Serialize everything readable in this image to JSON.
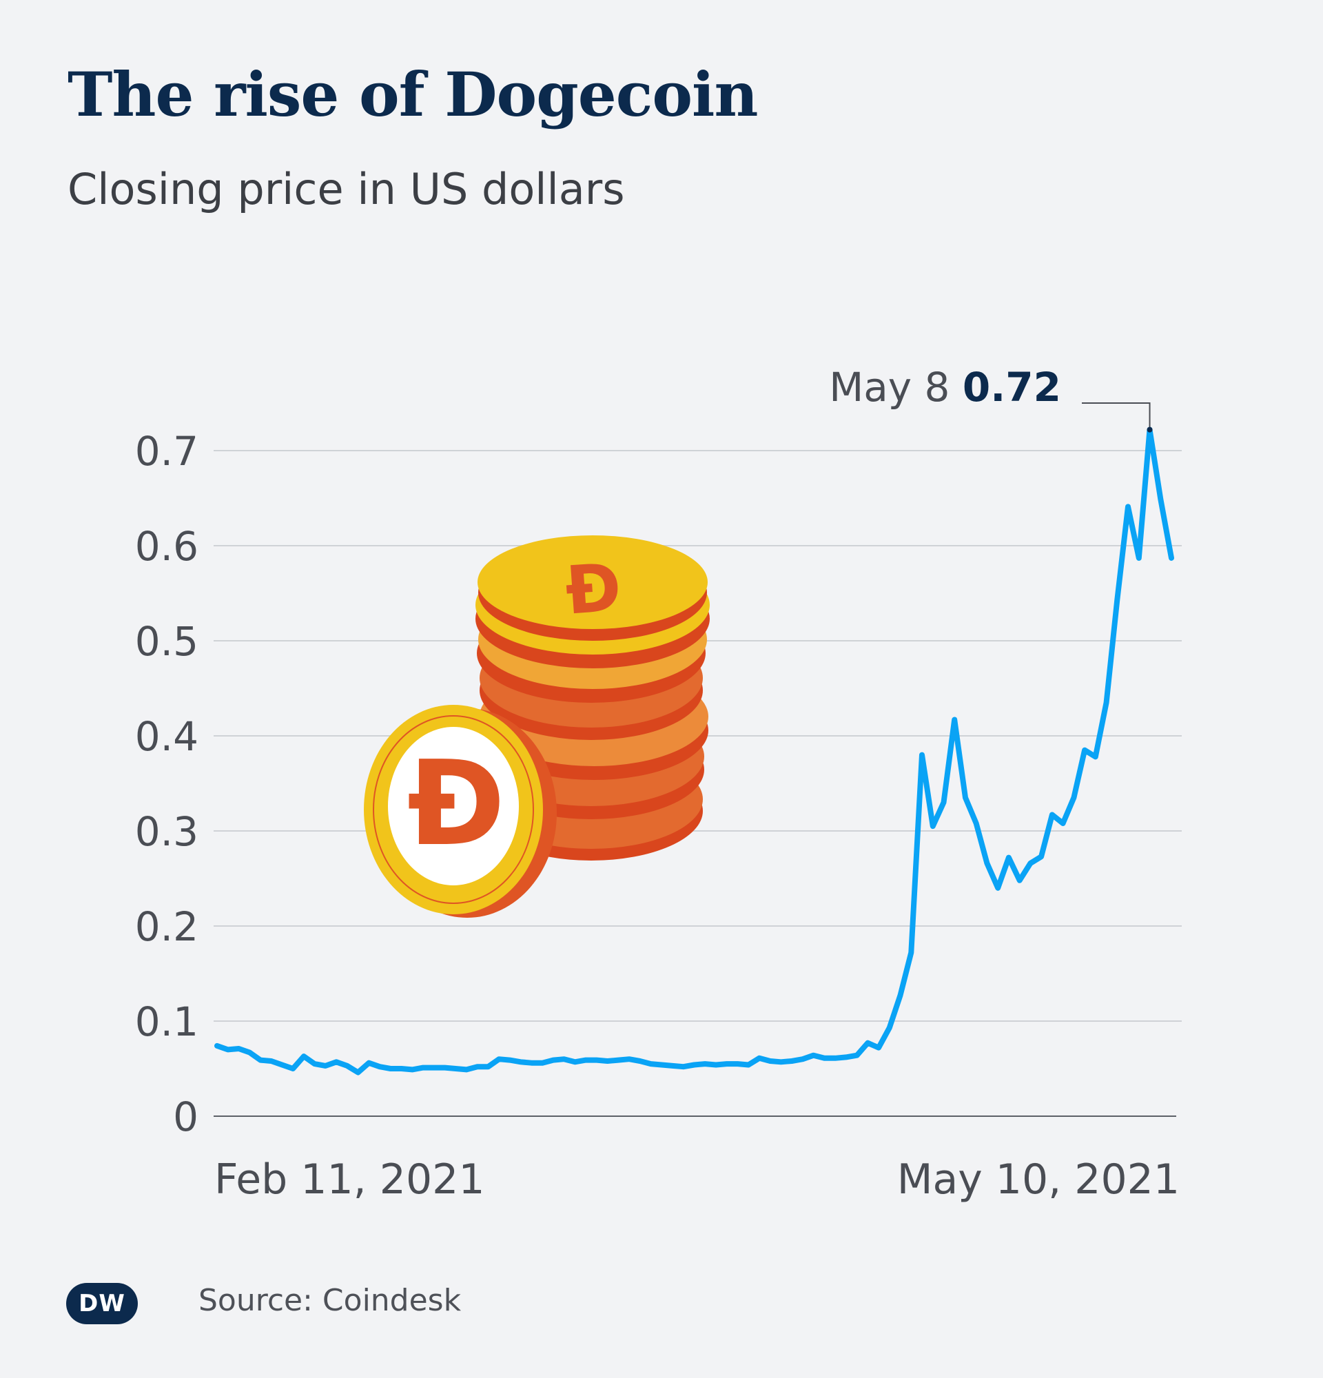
{
  "title": "The rise of Dogecoin",
  "subtitle": "Closing price in US dollars",
  "source": "Source: Coindesk",
  "logo_text": "DW",
  "colors": {
    "line": "#0aa3f5",
    "title": "#0c2a4d",
    "grid": "#cfd2d6",
    "coin_gold": "#f1c41b",
    "coin_orange": "#df5524"
  },
  "annotation": {
    "date": "May 8",
    "value": "0.72"
  },
  "chart_data": {
    "type": "line",
    "title": "The rise of Dogecoin",
    "ylabel": "",
    "xlabel": "",
    "ylim": [
      0,
      0.75
    ],
    "yticks": [
      "0",
      "0.1",
      "0.2",
      "0.3",
      "0.4",
      "0.5",
      "0.6",
      "0.7"
    ],
    "xtick_labels": [
      "Feb 11, 2021",
      "May 10, 2021"
    ],
    "x_start": "2021-02-11",
    "x_end": "2021-05-10",
    "grid": true,
    "series": [
      {
        "values": [
          0.074,
          0.07,
          0.071,
          0.067,
          0.059,
          0.058,
          0.054,
          0.05,
          0.063,
          0.055,
          0.053,
          0.057,
          0.053,
          0.046,
          0.056,
          0.052,
          0.05,
          0.05,
          0.049,
          0.051,
          0.051,
          0.051,
          0.05,
          0.049,
          0.052,
          0.052,
          0.06,
          0.059,
          0.057,
          0.056,
          0.056,
          0.059,
          0.06,
          0.057,
          0.059,
          0.059,
          0.058,
          0.059,
          0.06,
          0.058,
          0.055,
          0.054,
          0.053,
          0.052,
          0.054,
          0.055,
          0.054,
          0.055,
          0.055,
          0.054,
          0.061,
          0.058,
          0.057,
          0.058,
          0.06,
          0.064,
          0.061,
          0.061,
          0.062,
          0.064,
          0.077,
          0.072,
          0.093,
          0.127,
          0.172,
          0.38,
          0.305,
          0.33,
          0.417,
          0.335,
          0.308,
          0.266,
          0.24,
          0.272,
          0.248,
          0.266,
          0.273,
          0.317,
          0.308,
          0.335,
          0.385,
          0.378,
          0.435,
          0.543,
          0.641,
          0.587,
          0.722,
          0.649,
          0.587
        ]
      }
    ]
  }
}
